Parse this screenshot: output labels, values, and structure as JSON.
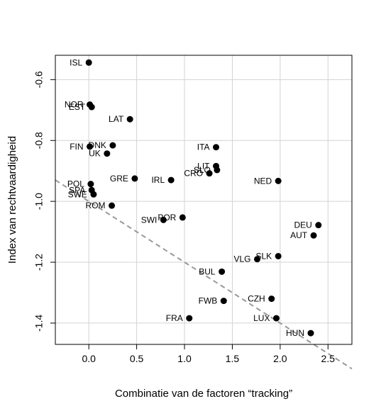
{
  "chart_data": {
    "type": "scatter",
    "xlabel": "Combinatie van de factoren “tracking”",
    "ylabel": "Index van rechtvaardigheid",
    "xlim": [
      -0.35,
      2.75
    ],
    "ylim": [
      -1.47,
      -0.52
    ],
    "xticks": [
      {
        "value": 0.0,
        "label": "0.0"
      },
      {
        "value": 0.5,
        "label": "0.5"
      },
      {
        "value": 1.0,
        "label": "1.0"
      },
      {
        "value": 1.5,
        "label": "1.5"
      },
      {
        "value": 2.0,
        "label": "2.0"
      },
      {
        "value": 2.5,
        "label": "2.5"
      }
    ],
    "yticks": [
      {
        "value": -0.6,
        "label": "-0.6"
      },
      {
        "value": -0.8,
        "label": "-0.8"
      },
      {
        "value": -1.0,
        "label": "-1.0"
      },
      {
        "value": -1.2,
        "label": "-1.2"
      },
      {
        "value": -1.4,
        "label": "-1.4"
      }
    ],
    "grid": true,
    "points": [
      {
        "label": "ISL",
        "x": 0.0,
        "y": -0.544
      },
      {
        "label": "NOR",
        "x": 0.01,
        "y": -0.682
      },
      {
        "label": "EST",
        "x": 0.03,
        "y": -0.69
      },
      {
        "label": "LAT",
        "x": 0.43,
        "y": -0.73
      },
      {
        "label": "FIN",
        "x": 0.01,
        "y": -0.82
      },
      {
        "label": "DNK",
        "x": 0.25,
        "y": -0.816
      },
      {
        "label": "UK",
        "x": 0.19,
        "y": -0.843
      },
      {
        "label": "ITA",
        "x": 1.33,
        "y": -0.822
      },
      {
        "label": "LIT",
        "x": 1.33,
        "y": -0.884
      },
      {
        "label": "SLO",
        "x": 1.34,
        "y": -0.897
      },
      {
        "label": "CRO",
        "x": 1.26,
        "y": -0.908
      },
      {
        "label": "GRE",
        "x": 0.48,
        "y": -0.925
      },
      {
        "label": "IRL",
        "x": 0.86,
        "y": -0.93
      },
      {
        "label": "NED",
        "x": 1.98,
        "y": -0.933
      },
      {
        "label": "POL",
        "x": 0.02,
        "y": -0.943
      },
      {
        "label": "SPA",
        "x": 0.03,
        "y": -0.963
      },
      {
        "label": "SWE",
        "x": 0.05,
        "y": -0.977
      },
      {
        "label": "ROM",
        "x": 0.24,
        "y": -1.014
      },
      {
        "label": "POR",
        "x": 0.98,
        "y": -1.053
      },
      {
        "label": "SWI",
        "x": 0.78,
        "y": -1.061
      },
      {
        "label": "DEU",
        "x": 2.4,
        "y": -1.078
      },
      {
        "label": "AUT",
        "x": 2.35,
        "y": -1.112
      },
      {
        "label": "SLK",
        "x": 1.98,
        "y": -1.18
      },
      {
        "label": "VLG",
        "x": 1.76,
        "y": -1.19
      },
      {
        "label": "BUL",
        "x": 1.39,
        "y": -1.231
      },
      {
        "label": "CZH",
        "x": 1.91,
        "y": -1.32
      },
      {
        "label": "FWB",
        "x": 1.41,
        "y": -1.327
      },
      {
        "label": "FRA",
        "x": 1.05,
        "y": -1.384
      },
      {
        "label": "LUX",
        "x": 1.96,
        "y": -1.384
      },
      {
        "label": "HUN",
        "x": 2.32,
        "y": -1.433
      }
    ],
    "trendline": {
      "style": "dashed",
      "color": "#999999",
      "intercept": -1.0,
      "slope": -0.2
    }
  }
}
